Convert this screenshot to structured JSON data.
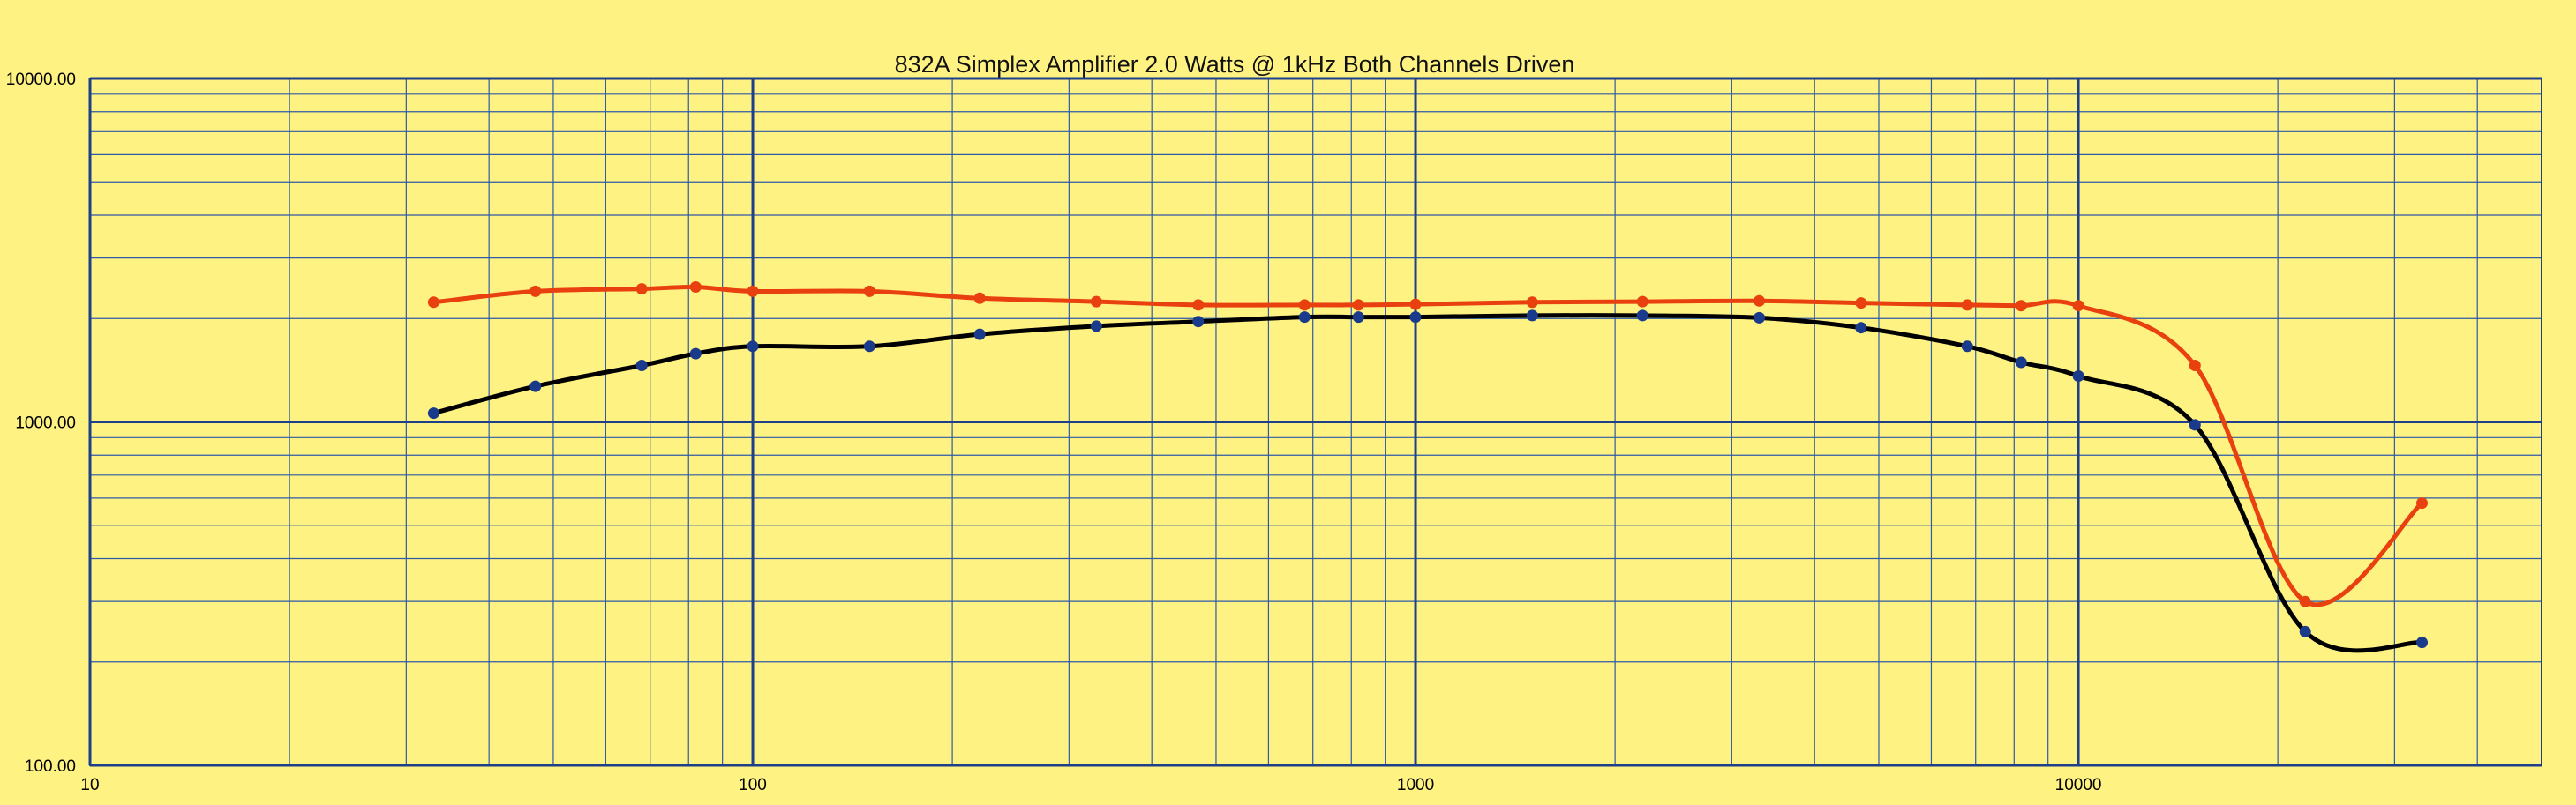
{
  "chart_data": {
    "type": "line",
    "title": "832A Simplex Amplifier 2.0 Watts @ 1kHz Both Channels Driven",
    "xlabel": "",
    "ylabel": "",
    "x_scale": "log",
    "y_scale": "log",
    "xlim": [
      10,
      50000
    ],
    "ylim": [
      100,
      10000
    ],
    "x_tick_labels": [
      "10",
      "100",
      "1000",
      "10000"
    ],
    "y_tick_labels": [
      "100.00",
      "1000.00",
      "10000.00"
    ],
    "grid": true,
    "legend": "none",
    "colors": {
      "background": "#fef282",
      "plot_background": "#fef282",
      "grid_major": "#1f3f8a",
      "grid_minor": "#2e5aa6",
      "series_1_line": "#e8410f",
      "series_1_marker": "#e8410f",
      "series_2_line": "#000000",
      "series_2_marker": "#1a3a8c",
      "title": "#111111"
    },
    "series": [
      {
        "values": [
          [
            33,
            2230
          ],
          [
            47,
            2400
          ],
          [
            68,
            2440
          ],
          [
            82,
            2470
          ],
          [
            100,
            2400
          ],
          [
            150,
            2400
          ],
          [
            220,
            2290
          ],
          [
            330,
            2240
          ],
          [
            470,
            2190
          ],
          [
            680,
            2190
          ],
          [
            820,
            2190
          ],
          [
            1000,
            2200
          ],
          [
            1500,
            2230
          ],
          [
            2200,
            2240
          ],
          [
            3300,
            2250
          ],
          [
            4700,
            2220
          ],
          [
            6800,
            2190
          ],
          [
            8200,
            2180
          ],
          [
            10000,
            2180
          ],
          [
            15000,
            1460
          ],
          [
            22000,
            300
          ],
          [
            33000,
            580
          ]
        ]
      },
      {
        "values": [
          [
            33,
            1060
          ],
          [
            47,
            1270
          ],
          [
            68,
            1460
          ],
          [
            82,
            1580
          ],
          [
            100,
            1660
          ],
          [
            150,
            1660
          ],
          [
            220,
            1800
          ],
          [
            330,
            1900
          ],
          [
            470,
            1960
          ],
          [
            680,
            2020
          ],
          [
            820,
            2020
          ],
          [
            1000,
            2020
          ],
          [
            1500,
            2040
          ],
          [
            2200,
            2040
          ],
          [
            3300,
            2010
          ],
          [
            4700,
            1880
          ],
          [
            6800,
            1660
          ],
          [
            8200,
            1490
          ],
          [
            10000,
            1360
          ],
          [
            15000,
            980
          ],
          [
            22000,
            245
          ],
          [
            33000,
            228
          ]
        ]
      }
    ]
  }
}
